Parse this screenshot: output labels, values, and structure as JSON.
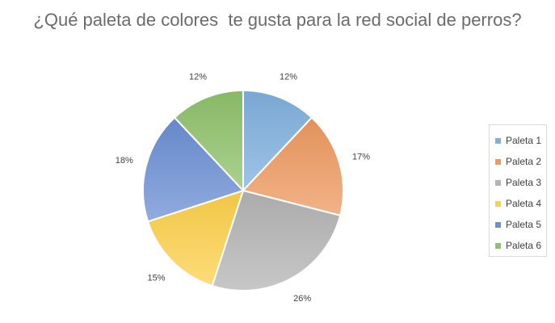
{
  "chart_data": {
    "type": "pie",
    "title": "¿Qué paleta de colores  te gusta para la red social de perros?",
    "categories": [
      "Paleta 1",
      "Paleta 2",
      "Paleta 3",
      "Paleta 4",
      "Paleta 5",
      "Paleta 6"
    ],
    "values": [
      12,
      17,
      26,
      15,
      18,
      12
    ],
    "data_labels": [
      "12%",
      "17%",
      "26%",
      "15%",
      "18%",
      "12%"
    ],
    "colors": [
      "#7fb0de",
      "#ee9a5f",
      "#b4b4b4",
      "#fdd04b",
      "#6b8fd4",
      "#8fc26a"
    ],
    "legend_position": "right"
  }
}
